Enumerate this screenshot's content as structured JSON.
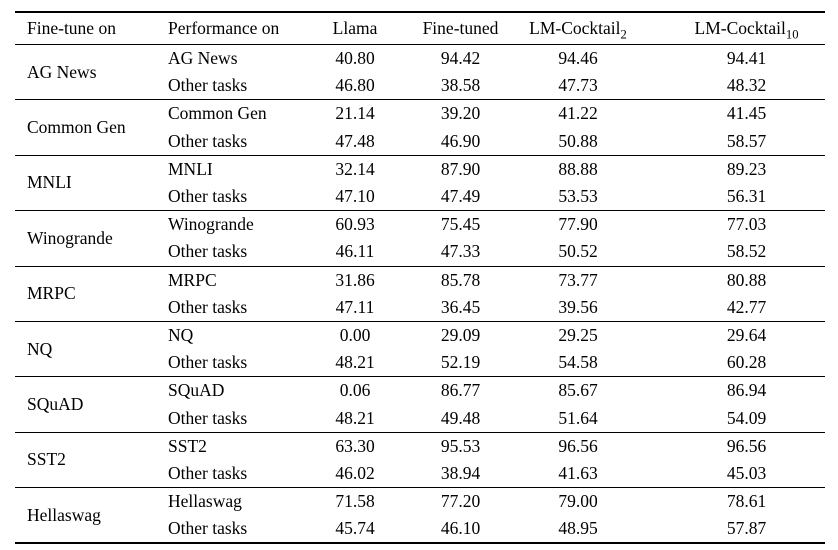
{
  "table": {
    "headers": {
      "finetune_on": "Fine-tune on",
      "performance_on": "Performance on",
      "llama": "Llama",
      "finetuned": "Fine-tuned",
      "cocktail2": {
        "base": "LM-Cocktail",
        "sub": "2"
      },
      "cocktail10": {
        "base": "LM-Cocktail",
        "sub": "10"
      }
    },
    "groups": [
      {
        "finetune_on": "AG News",
        "rows": [
          {
            "performance_on": "AG News",
            "llama": "40.80",
            "finetuned": "94.42",
            "cocktail2": "94.46",
            "cocktail10": "94.41"
          },
          {
            "performance_on": "Other tasks",
            "llama": "46.80",
            "finetuned": "38.58",
            "cocktail2": "47.73",
            "cocktail10": "48.32"
          }
        ]
      },
      {
        "finetune_on": "Common Gen",
        "rows": [
          {
            "performance_on": "Common Gen",
            "llama": "21.14",
            "finetuned": "39.20",
            "cocktail2": "41.22",
            "cocktail10": "41.45"
          },
          {
            "performance_on": "Other tasks",
            "llama": "47.48",
            "finetuned": "46.90",
            "cocktail2": "50.88",
            "cocktail10": "58.57"
          }
        ]
      },
      {
        "finetune_on": "MNLI",
        "rows": [
          {
            "performance_on": "MNLI",
            "llama": "32.14",
            "finetuned": "87.90",
            "cocktail2": "88.88",
            "cocktail10": "89.23"
          },
          {
            "performance_on": "Other tasks",
            "llama": "47.10",
            "finetuned": "47.49",
            "cocktail2": "53.53",
            "cocktail10": "56.31"
          }
        ]
      },
      {
        "finetune_on": "Winogrande",
        "rows": [
          {
            "performance_on": "Winogrande",
            "llama": "60.93",
            "finetuned": "75.45",
            "cocktail2": "77.90",
            "cocktail10": "77.03"
          },
          {
            "performance_on": "Other tasks",
            "llama": "46.11",
            "finetuned": "47.33",
            "cocktail2": "50.52",
            "cocktail10": "58.52"
          }
        ]
      },
      {
        "finetune_on": "MRPC",
        "rows": [
          {
            "performance_on": "MRPC",
            "llama": "31.86",
            "finetuned": "85.78",
            "cocktail2": "73.77",
            "cocktail10": "80.88"
          },
          {
            "performance_on": "Other tasks",
            "llama": "47.11",
            "finetuned": "36.45",
            "cocktail2": "39.56",
            "cocktail10": "42.77"
          }
        ]
      },
      {
        "finetune_on": "NQ",
        "rows": [
          {
            "performance_on": "NQ",
            "llama": "0.00",
            "finetuned": "29.09",
            "cocktail2": "29.25",
            "cocktail10": "29.64"
          },
          {
            "performance_on": "Other tasks",
            "llama": "48.21",
            "finetuned": "52.19",
            "cocktail2": "54.58",
            "cocktail10": "60.28"
          }
        ]
      },
      {
        "finetune_on": "SQuAD",
        "rows": [
          {
            "performance_on": "SQuAD",
            "llama": "0.06",
            "finetuned": "86.77",
            "cocktail2": "85.67",
            "cocktail10": "86.94"
          },
          {
            "performance_on": "Other tasks",
            "llama": "48.21",
            "finetuned": "49.48",
            "cocktail2": "51.64",
            "cocktail10": "54.09"
          }
        ]
      },
      {
        "finetune_on": "SST2",
        "rows": [
          {
            "performance_on": "SST2",
            "llama": "63.30",
            "finetuned": "95.53",
            "cocktail2": "96.56",
            "cocktail10": "96.56"
          },
          {
            "performance_on": "Other tasks",
            "llama": "46.02",
            "finetuned": "38.94",
            "cocktail2": "41.63",
            "cocktail10": "45.03"
          }
        ]
      },
      {
        "finetune_on": "Hellaswag",
        "rows": [
          {
            "performance_on": "Hellaswag",
            "llama": "71.58",
            "finetuned": "77.20",
            "cocktail2": "79.00",
            "cocktail10": "78.61"
          },
          {
            "performance_on": "Other tasks",
            "llama": "45.74",
            "finetuned": "46.10",
            "cocktail2": "48.95",
            "cocktail10": "57.87"
          }
        ]
      }
    ]
  }
}
